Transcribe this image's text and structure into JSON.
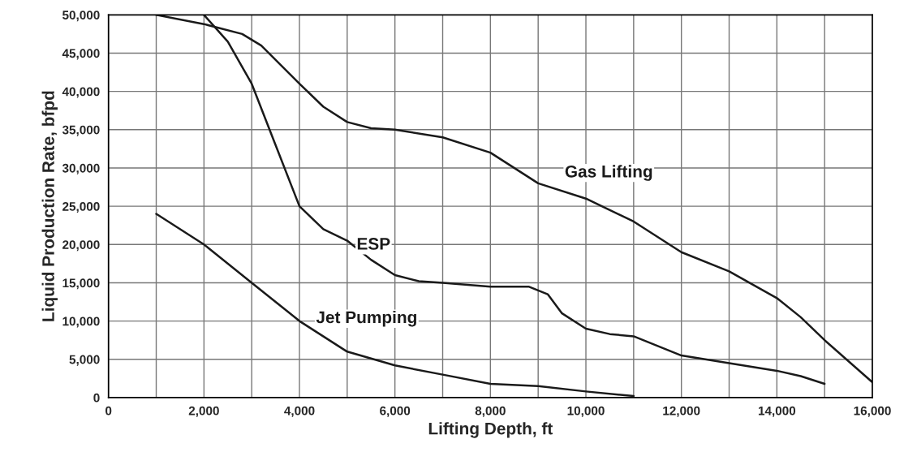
{
  "chart_data": {
    "type": "line",
    "xlabel": "Lifting Depth, ft",
    "ylabel": "Liquid Production Rate, bfpd",
    "xlim": [
      0,
      16000
    ],
    "ylim": [
      0,
      50000
    ],
    "xticks": [
      0,
      {
        "value": 1000,
        "label": null
      },
      {
        "value": 2000,
        "label": "2,000"
      },
      {
        "value": 3000,
        "label": null
      },
      {
        "value": 4000,
        "label": "4,000"
      },
      {
        "value": 5000,
        "label": null
      },
      {
        "value": 6000,
        "label": "6,000"
      },
      {
        "value": 7000,
        "label": null
      },
      {
        "value": 8000,
        "label": "8,000"
      },
      {
        "value": 9000,
        "label": null
      },
      {
        "value": 10000,
        "label": "10,000"
      },
      {
        "value": 11000,
        "label": null
      },
      {
        "value": 12000,
        "label": "12,000"
      },
      {
        "value": 13000,
        "label": null
      },
      {
        "value": 14000,
        "label": "14,000"
      },
      {
        "value": 15000,
        "label": null
      },
      {
        "value": 16000,
        "label": "16,000"
      }
    ],
    "yticks": [
      0,
      {
        "value": 5000,
        "label": "5,000"
      },
      {
        "value": 10000,
        "label": "10,000"
      },
      {
        "value": 15000,
        "label": "15,000"
      },
      {
        "value": 20000,
        "label": "20,000"
      },
      {
        "value": 25000,
        "label": "25,000"
      },
      {
        "value": 30000,
        "label": "30,000"
      },
      {
        "value": 35000,
        "label": "35,000"
      },
      {
        "value": 40000,
        "label": "40,000"
      },
      {
        "value": 45000,
        "label": "45,000"
      },
      {
        "value": 50000,
        "label": "50,000"
      }
    ],
    "grid": true,
    "legend": false,
    "marker": "none",
    "line_style": "solid",
    "series": [
      {
        "name": "Gas Lifting",
        "color": "#1a1a1a",
        "x": [
          1000,
          2000,
          2800,
          3200,
          4000,
          4500,
          5000,
          5500,
          6000,
          7000,
          8000,
          9000,
          10000,
          11000,
          12000,
          13000,
          14000,
          14500,
          15000,
          16000
        ],
        "values": [
          50000,
          48800,
          47500,
          46000,
          41000,
          38000,
          36000,
          35200,
          35000,
          34000,
          32000,
          28000,
          26000,
          23000,
          19000,
          16500,
          13000,
          10500,
          7500,
          2000
        ]
      },
      {
        "name": "ESP",
        "color": "#1a1a1a",
        "x": [
          2000,
          2500,
          3000,
          3500,
          4000,
          4500,
          5000,
          5500,
          6000,
          6500,
          7000,
          8000,
          8800,
          9200,
          9500,
          10000,
          10500,
          11000,
          12000,
          13000,
          14000,
          14500,
          15000
        ],
        "values": [
          50000,
          46500,
          41000,
          33000,
          25000,
          22000,
          20500,
          18000,
          16000,
          15200,
          15000,
          14500,
          14500,
          13500,
          11000,
          9000,
          8300,
          8000,
          5500,
          4500,
          3500,
          2800,
          1800
        ]
      },
      {
        "name": "Jet Pumping",
        "color": "#1a1a1a",
        "x": [
          1000,
          2000,
          3000,
          4000,
          5000,
          6000,
          7000,
          8000,
          9000,
          10000,
          11000
        ],
        "values": [
          24000,
          20000,
          15000,
          10000,
          6000,
          4200,
          3000,
          1800,
          1500,
          800,
          200
        ]
      }
    ]
  }
}
